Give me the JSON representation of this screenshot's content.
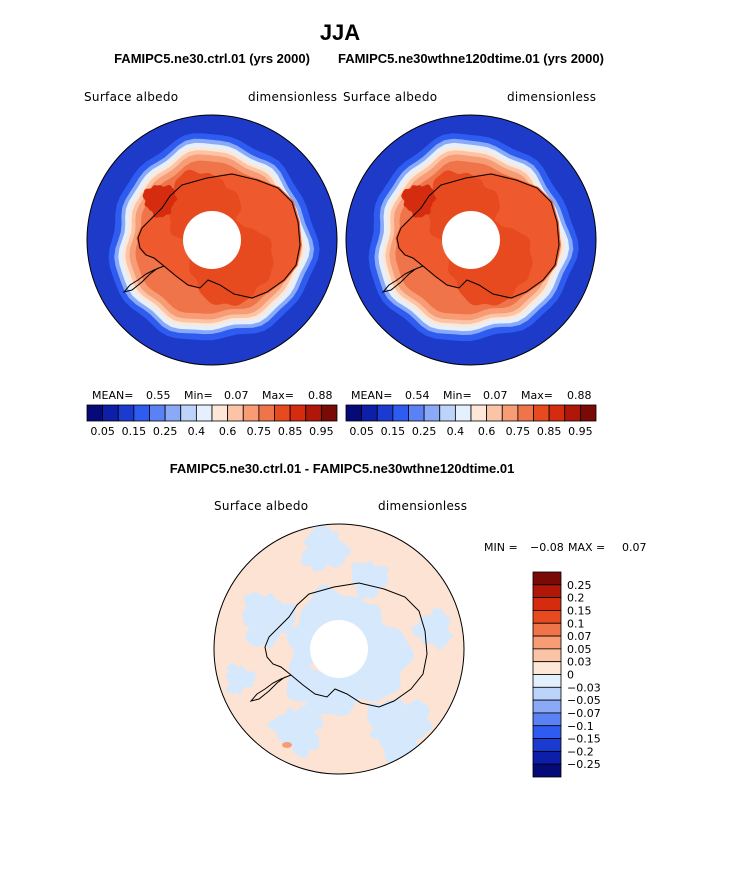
{
  "page": {
    "title": "JJA",
    "top_left_run": "FAMIPC5.ne30.ctrl.01 (yrs 2000)",
    "top_right_run": "FAMIPC5.ne30wthne120dtime.01 (yrs 2000)",
    "diff_title": "FAMIPC5.ne30.ctrl.01 - FAMIPC5.ne30wthne120dtime.01"
  },
  "colors": {
    "ocean_blue": "#1d3ac9",
    "land_red": "#e8461e",
    "land_orange": "#f47a4c",
    "diff_pos": "#fde3d3",
    "diff_neg": "#d6e8fb"
  },
  "chart_data": [
    {
      "type": "heatmap",
      "projection": "south-polar-stereographic",
      "variable": "Surface albedo",
      "units": "dimensionless",
      "case": "FAMIPC5.ne30.ctrl.01 (yrs 2000)",
      "stats": {
        "mean_label": "MEAN=",
        "mean": "0.55",
        "min_label": "Min=",
        "min": "0.07",
        "max_label": "Max=",
        "max": "0.88"
      },
      "colorbar": {
        "tick_labels": [
          "0.05",
          "0.15",
          "0.25",
          "0.4",
          "0.6",
          "0.75",
          "0.85",
          "0.95"
        ],
        "colors": [
          "#050a78",
          "#0d1fa8",
          "#1a3ad0",
          "#2f5cf0",
          "#5a82f5",
          "#8aaaf7",
          "#bcd3fa",
          "#e4f0fd",
          "#fde7d6",
          "#fbc4a6",
          "#f79c74",
          "#f0744a",
          "#e84a20",
          "#d52c10",
          "#b01708",
          "#7a0a05"
        ]
      }
    },
    {
      "type": "heatmap",
      "projection": "south-polar-stereographic",
      "variable": "Surface albedo",
      "units": "dimensionless",
      "case": "FAMIPC5.ne30wthne120dtime.01 (yrs 2000)",
      "stats": {
        "mean_label": "MEAN=",
        "mean": "0.54",
        "min_label": "Min=",
        "min": "0.07",
        "max_label": "Max=",
        "max": "0.88"
      },
      "colorbar": {
        "tick_labels": [
          "0.05",
          "0.15",
          "0.25",
          "0.4",
          "0.6",
          "0.75",
          "0.85",
          "0.95"
        ],
        "colors": [
          "#050a78",
          "#0d1fa8",
          "#1a3ad0",
          "#2f5cf0",
          "#5a82f5",
          "#8aaaf7",
          "#bcd3fa",
          "#e4f0fd",
          "#fde7d6",
          "#fbc4a6",
          "#f79c74",
          "#f0744a",
          "#e84a20",
          "#d52c10",
          "#b01708",
          "#7a0a05"
        ]
      }
    },
    {
      "type": "heatmap",
      "projection": "south-polar-stereographic",
      "variable": "Surface albedo",
      "units": "dimensionless",
      "case": "FAMIPC5.ne30.ctrl.01 - FAMIPC5.ne30wthne120dtime.01",
      "stats": {
        "min_label": "MIN =",
        "min": "−0.08",
        "max_label": "MAX =",
        "max": "0.07"
      },
      "colorbar": {
        "orientation": "vertical",
        "tick_labels": [
          "0.25",
          "0.2",
          "0.15",
          "0.1",
          "0.07",
          "0.05",
          "0.03",
          "0",
          "−0.03",
          "−0.05",
          "−0.07",
          "−0.1",
          "−0.15",
          "−0.2",
          "−0.25"
        ],
        "colors": [
          "#7a0a05",
          "#b01708",
          "#d52c10",
          "#e84a20",
          "#f0744a",
          "#f79c74",
          "#fbc4a6",
          "#fde7d6",
          "#e4f0fd",
          "#bcd3fa",
          "#8aaaf7",
          "#5a82f5",
          "#2f5cf0",
          "#1a3ad0",
          "#0d1fa8",
          "#050a78"
        ]
      }
    }
  ]
}
